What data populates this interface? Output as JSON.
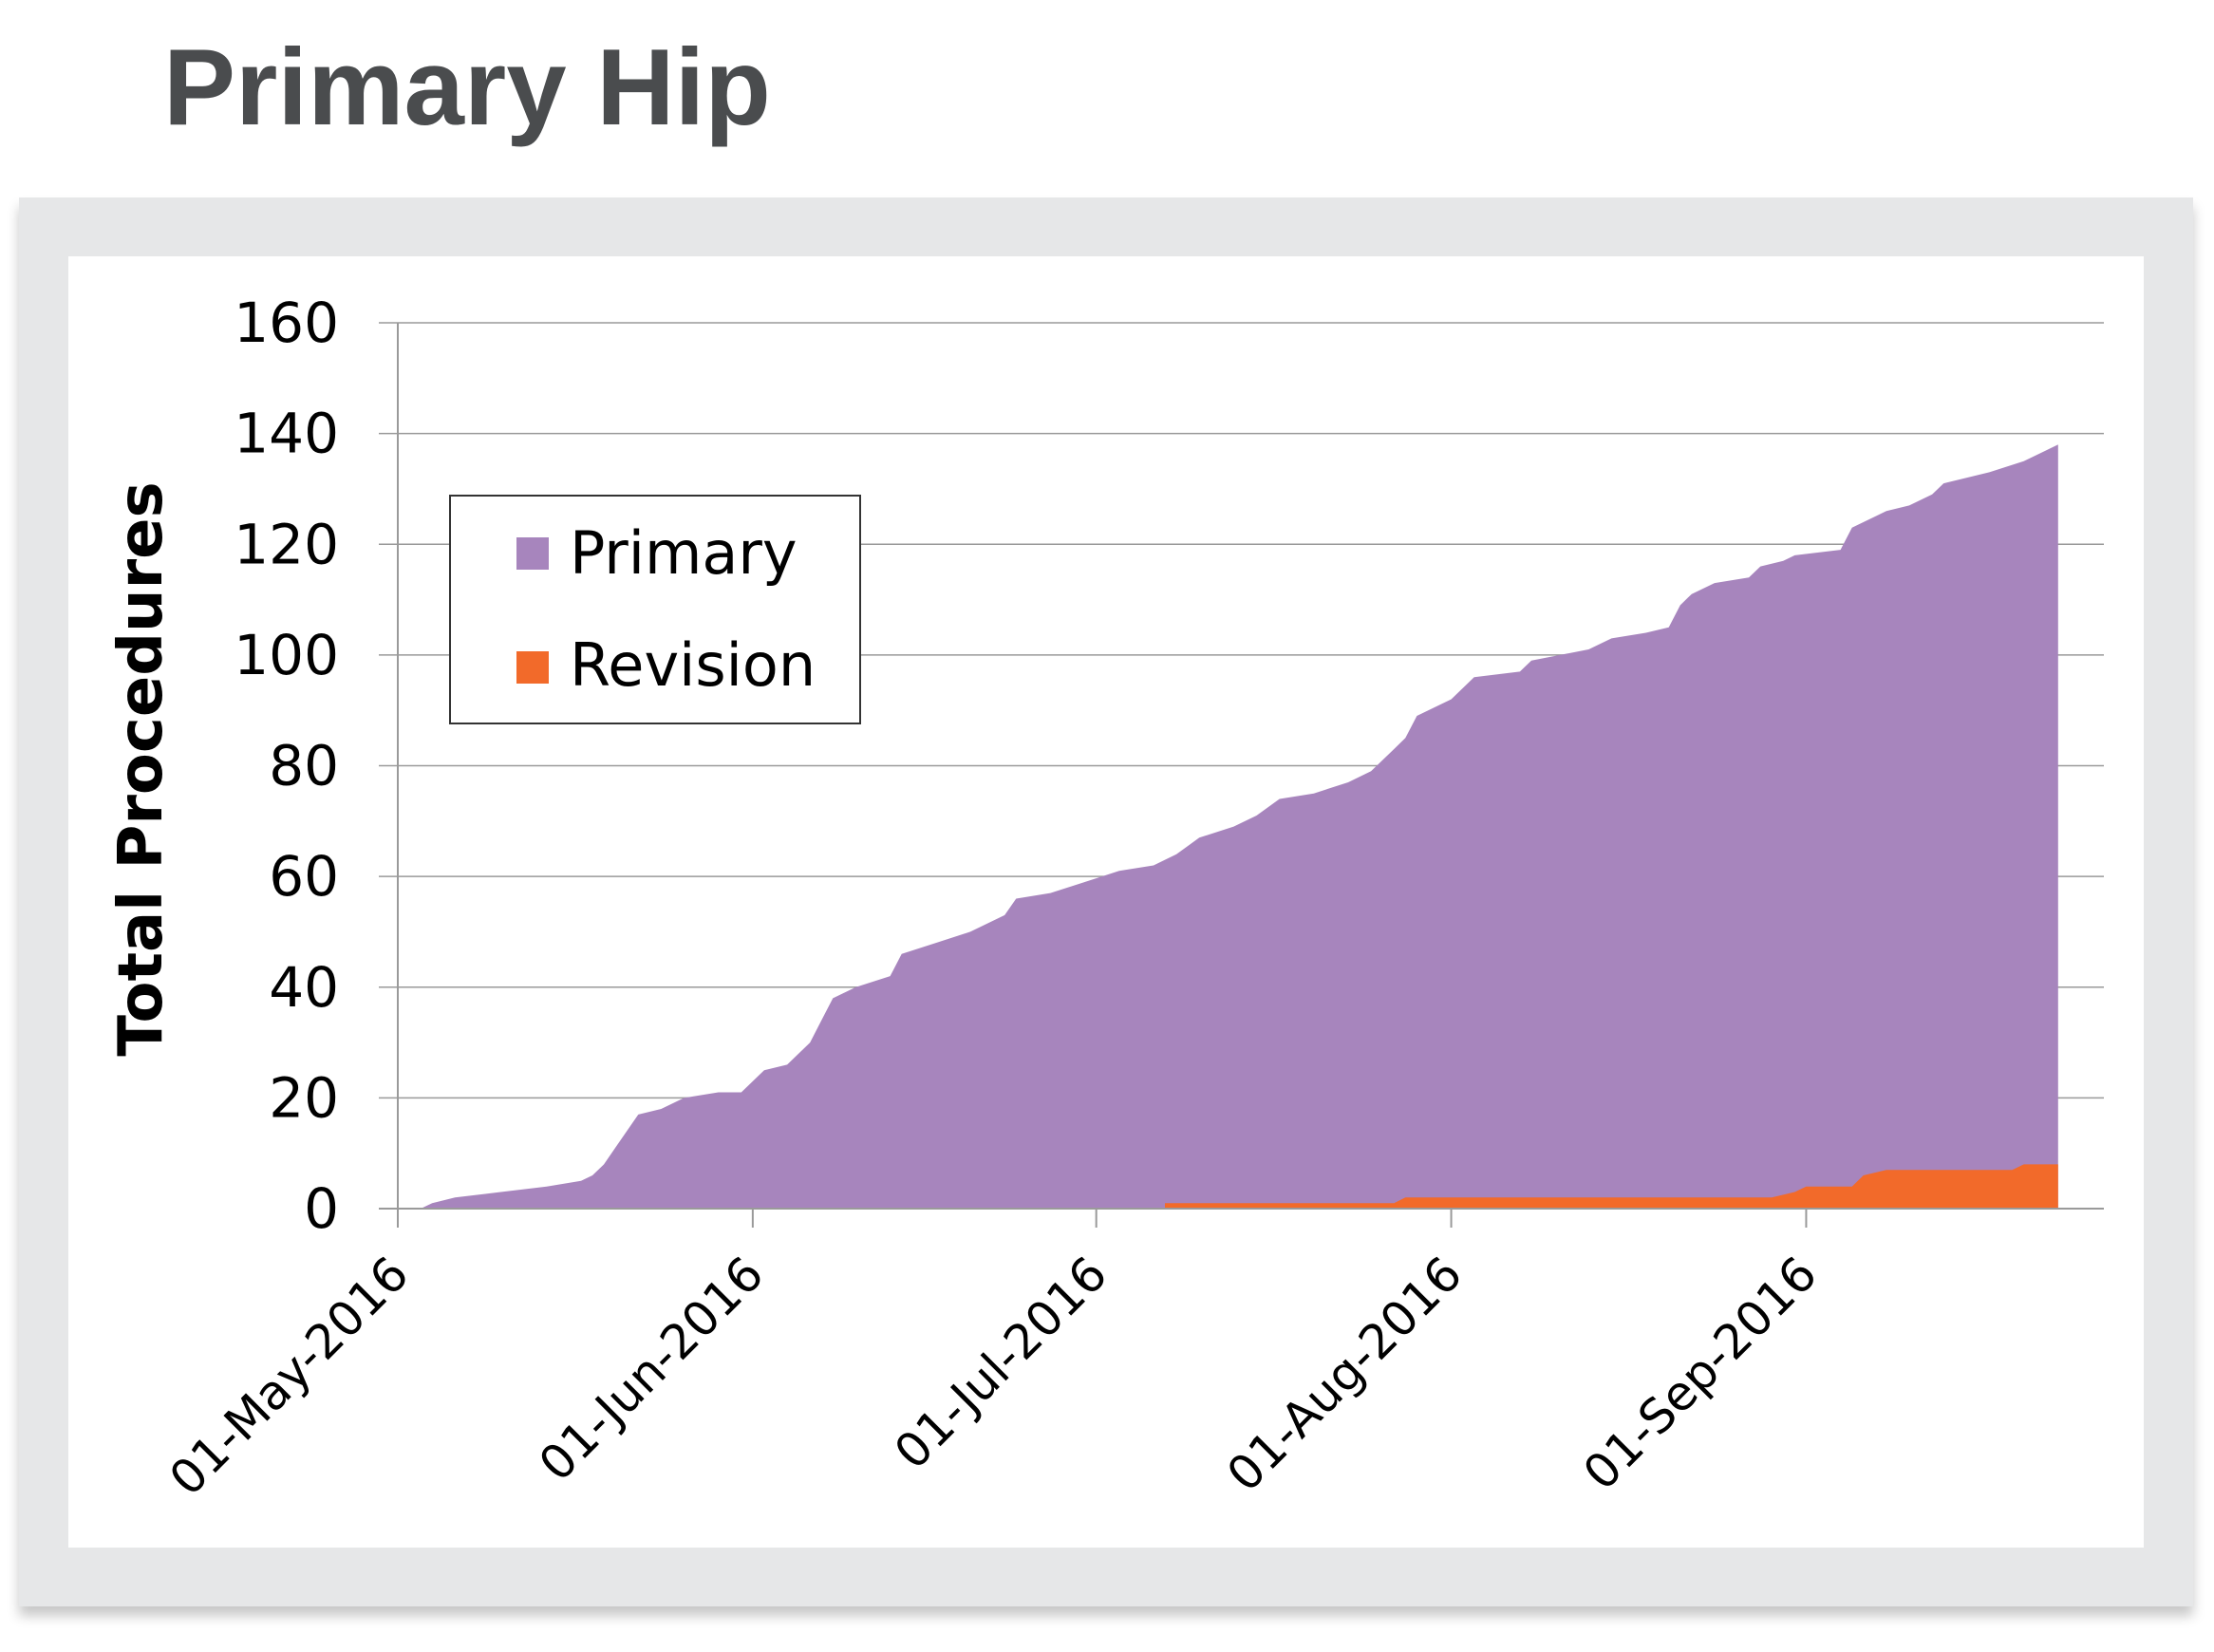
{
  "page": {
    "title": "Primary Hip"
  },
  "chart_data": {
    "type": "area",
    "stacked": false,
    "x_type": "date",
    "ylabel": "Total Procedures",
    "xlabel": "",
    "ylim": [
      0,
      160
    ],
    "yticks": [
      0,
      20,
      40,
      60,
      80,
      100,
      120,
      140,
      160
    ],
    "xlim": [
      "2016-05-01",
      "2016-09-27"
    ],
    "xticks": [
      "2016-05-01",
      "2016-06-01",
      "2016-07-01",
      "2016-08-01",
      "2016-09-01"
    ],
    "xtick_labels": [
      "01-May-2016",
      "01-Jun-2016",
      "01-Jul-2016",
      "01-Aug-2016",
      "01-Sep-2016"
    ],
    "grid": "horizontal",
    "legend": {
      "position": "top-left",
      "entries": [
        "Primary",
        "Revision"
      ]
    },
    "colors": {
      "Primary": "#a785bd",
      "Revision": "#f26a2a",
      "grid": "#9a9a9a"
    },
    "series": [
      {
        "name": "Primary",
        "points": [
          [
            "2016-05-03",
            0
          ],
          [
            "2016-05-04",
            1
          ],
          [
            "2016-05-06",
            2
          ],
          [
            "2016-05-10",
            3
          ],
          [
            "2016-05-14",
            4
          ],
          [
            "2016-05-17",
            5
          ],
          [
            "2016-05-18",
            6
          ],
          [
            "2016-05-19",
            8
          ],
          [
            "2016-05-20",
            11
          ],
          [
            "2016-05-21",
            14
          ],
          [
            "2016-05-22",
            17
          ],
          [
            "2016-05-24",
            18
          ],
          [
            "2016-05-26",
            20
          ],
          [
            "2016-05-29",
            21
          ],
          [
            "2016-05-31",
            21
          ],
          [
            "2016-06-02",
            25
          ],
          [
            "2016-06-04",
            26
          ],
          [
            "2016-06-06",
            30
          ],
          [
            "2016-06-07",
            34
          ],
          [
            "2016-06-08",
            38
          ],
          [
            "2016-06-10",
            40
          ],
          [
            "2016-06-13",
            42
          ],
          [
            "2016-06-14",
            46
          ],
          [
            "2016-06-17",
            48
          ],
          [
            "2016-06-20",
            50
          ],
          [
            "2016-06-23",
            53
          ],
          [
            "2016-06-24",
            56
          ],
          [
            "2016-06-27",
            57
          ],
          [
            "2016-06-30",
            59
          ],
          [
            "2016-07-03",
            61
          ],
          [
            "2016-07-06",
            62
          ],
          [
            "2016-07-08",
            64
          ],
          [
            "2016-07-10",
            67
          ],
          [
            "2016-07-13",
            69
          ],
          [
            "2016-07-15",
            71
          ],
          [
            "2016-07-17",
            74
          ],
          [
            "2016-07-20",
            75
          ],
          [
            "2016-07-23",
            77
          ],
          [
            "2016-07-25",
            79
          ],
          [
            "2016-07-27",
            83
          ],
          [
            "2016-07-28",
            85
          ],
          [
            "2016-07-29",
            89
          ],
          [
            "2016-08-01",
            92
          ],
          [
            "2016-08-03",
            96
          ],
          [
            "2016-08-07",
            97
          ],
          [
            "2016-08-08",
            99
          ],
          [
            "2016-08-13",
            101
          ],
          [
            "2016-08-15",
            103
          ],
          [
            "2016-08-18",
            104
          ],
          [
            "2016-08-20",
            105
          ],
          [
            "2016-08-21",
            109
          ],
          [
            "2016-08-22",
            111
          ],
          [
            "2016-08-24",
            113
          ],
          [
            "2016-08-27",
            114
          ],
          [
            "2016-08-28",
            116
          ],
          [
            "2016-08-30",
            117
          ],
          [
            "2016-08-31",
            118
          ],
          [
            "2016-09-04",
            119
          ],
          [
            "2016-09-05",
            123
          ],
          [
            "2016-09-07",
            125
          ],
          [
            "2016-09-08",
            126
          ],
          [
            "2016-09-10",
            127
          ],
          [
            "2016-09-12",
            129
          ],
          [
            "2016-09-13",
            131
          ],
          [
            "2016-09-17",
            133
          ],
          [
            "2016-09-20",
            135
          ],
          [
            "2016-09-22",
            137
          ],
          [
            "2016-09-23",
            138
          ]
        ]
      },
      {
        "name": "Revision",
        "points": [
          [
            "2016-07-07",
            0
          ],
          [
            "2016-07-07",
            1
          ],
          [
            "2016-07-27",
            1
          ],
          [
            "2016-07-28",
            2
          ],
          [
            "2016-08-29",
            2
          ],
          [
            "2016-08-31",
            3
          ],
          [
            "2016-09-01",
            4
          ],
          [
            "2016-09-05",
            4
          ],
          [
            "2016-09-06",
            6
          ],
          [
            "2016-09-08",
            7
          ],
          [
            "2016-09-19",
            7
          ],
          [
            "2016-09-20",
            8
          ],
          [
            "2016-09-23",
            8
          ]
        ]
      }
    ]
  }
}
